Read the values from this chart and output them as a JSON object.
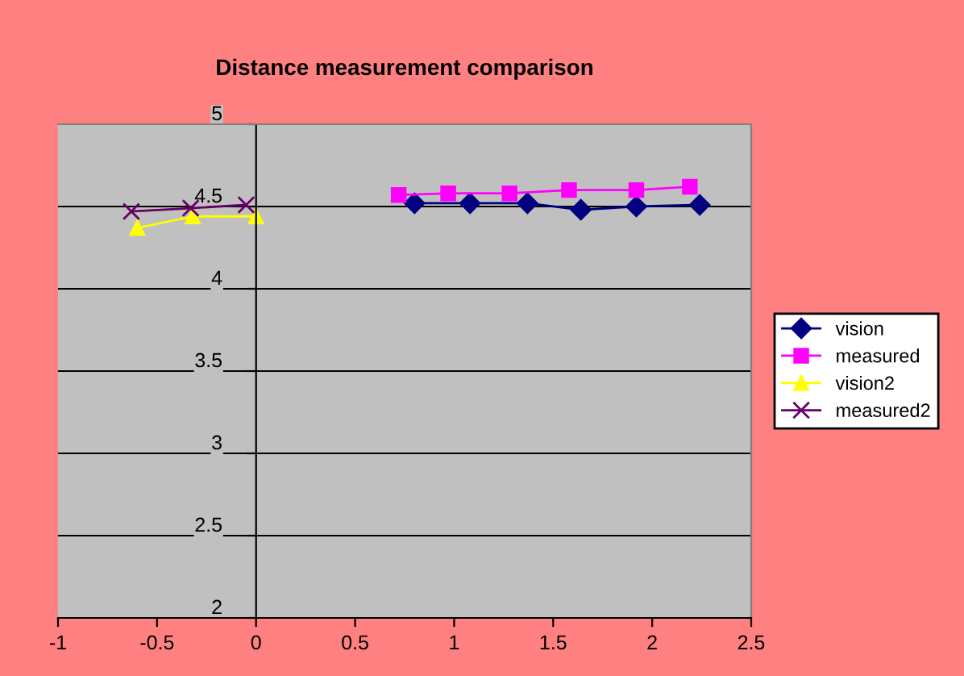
{
  "chart_data": {
    "type": "line",
    "title": "Distance measurement comparison",
    "series": [
      {
        "name": "vision",
        "color": "#000080",
        "marker": "diamond",
        "x": [
          0.8,
          1.08,
          1.37,
          1.64,
          1.92,
          2.24
        ],
        "values": [
          4.52,
          4.52,
          4.52,
          4.48,
          4.5,
          4.51
        ]
      },
      {
        "name": "measured",
        "color": "#ff00ff",
        "marker": "square",
        "x": [
          0.72,
          0.97,
          1.28,
          1.58,
          1.92,
          2.19
        ],
        "values": [
          4.57,
          4.58,
          4.58,
          4.6,
          4.6,
          4.62
        ]
      },
      {
        "name": "vision2",
        "color": "#ffff00",
        "marker": "triangle",
        "x": [
          -0.6,
          -0.32,
          0.0
        ],
        "values": [
          4.37,
          4.44,
          4.44
        ]
      },
      {
        "name": "measured2",
        "color": "#660066",
        "marker": "cross",
        "x": [
          -0.63,
          -0.33,
          -0.05
        ],
        "values": [
          4.47,
          4.49,
          4.51
        ]
      }
    ],
    "xlim": [
      -1,
      2.5
    ],
    "xticks": [
      -1,
      -0.5,
      0,
      0.5,
      1,
      1.5,
      2,
      2.5
    ],
    "ylim": [
      2,
      5
    ],
    "yticks": [
      2,
      2.5,
      3,
      3.5,
      4,
      4.5,
      5
    ],
    "grid": "y",
    "legend": "right"
  }
}
